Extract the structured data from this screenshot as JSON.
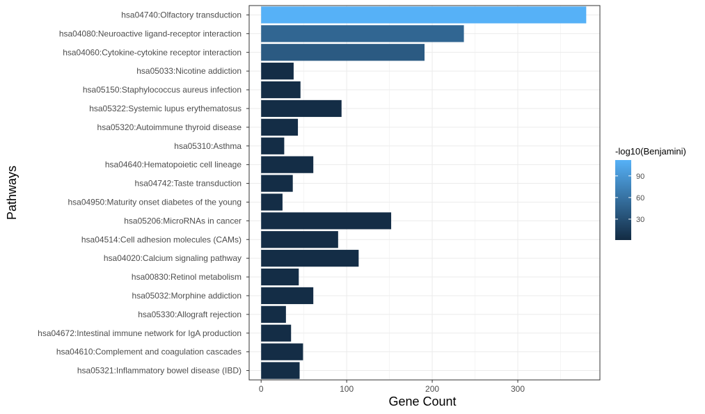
{
  "chart_data": {
    "type": "bar",
    "orientation": "horizontal",
    "xlabel": "Gene Count",
    "ylabel": "Pathways",
    "xlim": [
      -14,
      396
    ],
    "xticks": [
      0,
      100,
      200,
      300
    ],
    "grid": true,
    "legend_position": "right",
    "categories": [
      "hsa04740:Olfactory transduction",
      "hsa04080:Neuroactive ligand-receptor interaction",
      "hsa04060:Cytokine-cytokine receptor interaction",
      "hsa05033:Nicotine addiction",
      "hsa05150:Staphylococcus aureus infection",
      "hsa05322:Systemic lupus erythematosus",
      "hsa05320:Autoimmune thyroid disease",
      "hsa05310:Asthma",
      "hsa04640:Hematopoietic cell lineage",
      "hsa04742:Taste transduction",
      "hsa04950:Maturity onset diabetes of the young",
      "hsa05206:MicroRNAs in cancer",
      "hsa04514:Cell adhesion molecules (CAMs)",
      "hsa04020:Calcium signaling pathway",
      "hsa00830:Retinol metabolism",
      "hsa05032:Morphine addiction",
      "hsa05330:Allograft rejection",
      "hsa04672:Intestinal immune network for IgA production",
      "hsa04610:Complement and coagulation cascades",
      "hsa05321:Inflammatory bowel disease (IBD)"
    ],
    "values": [
      380,
      237,
      191,
      38,
      46,
      94,
      43,
      27,
      61,
      37,
      25,
      152,
      90,
      114,
      44,
      61,
      29,
      35,
      49,
      45
    ],
    "color_values": [
      112,
      50,
      40,
      3,
      3,
      3,
      3,
      3,
      3,
      3,
      3,
      3,
      3,
      3,
      3,
      3,
      3,
      3,
      3,
      3
    ],
    "legend": {
      "title": "-log10(Benjamini)",
      "ticks": [
        30,
        60,
        90
      ],
      "range": [
        1,
        112
      ],
      "color_low": "#132b43",
      "color_high": "#56b1f7"
    }
  }
}
